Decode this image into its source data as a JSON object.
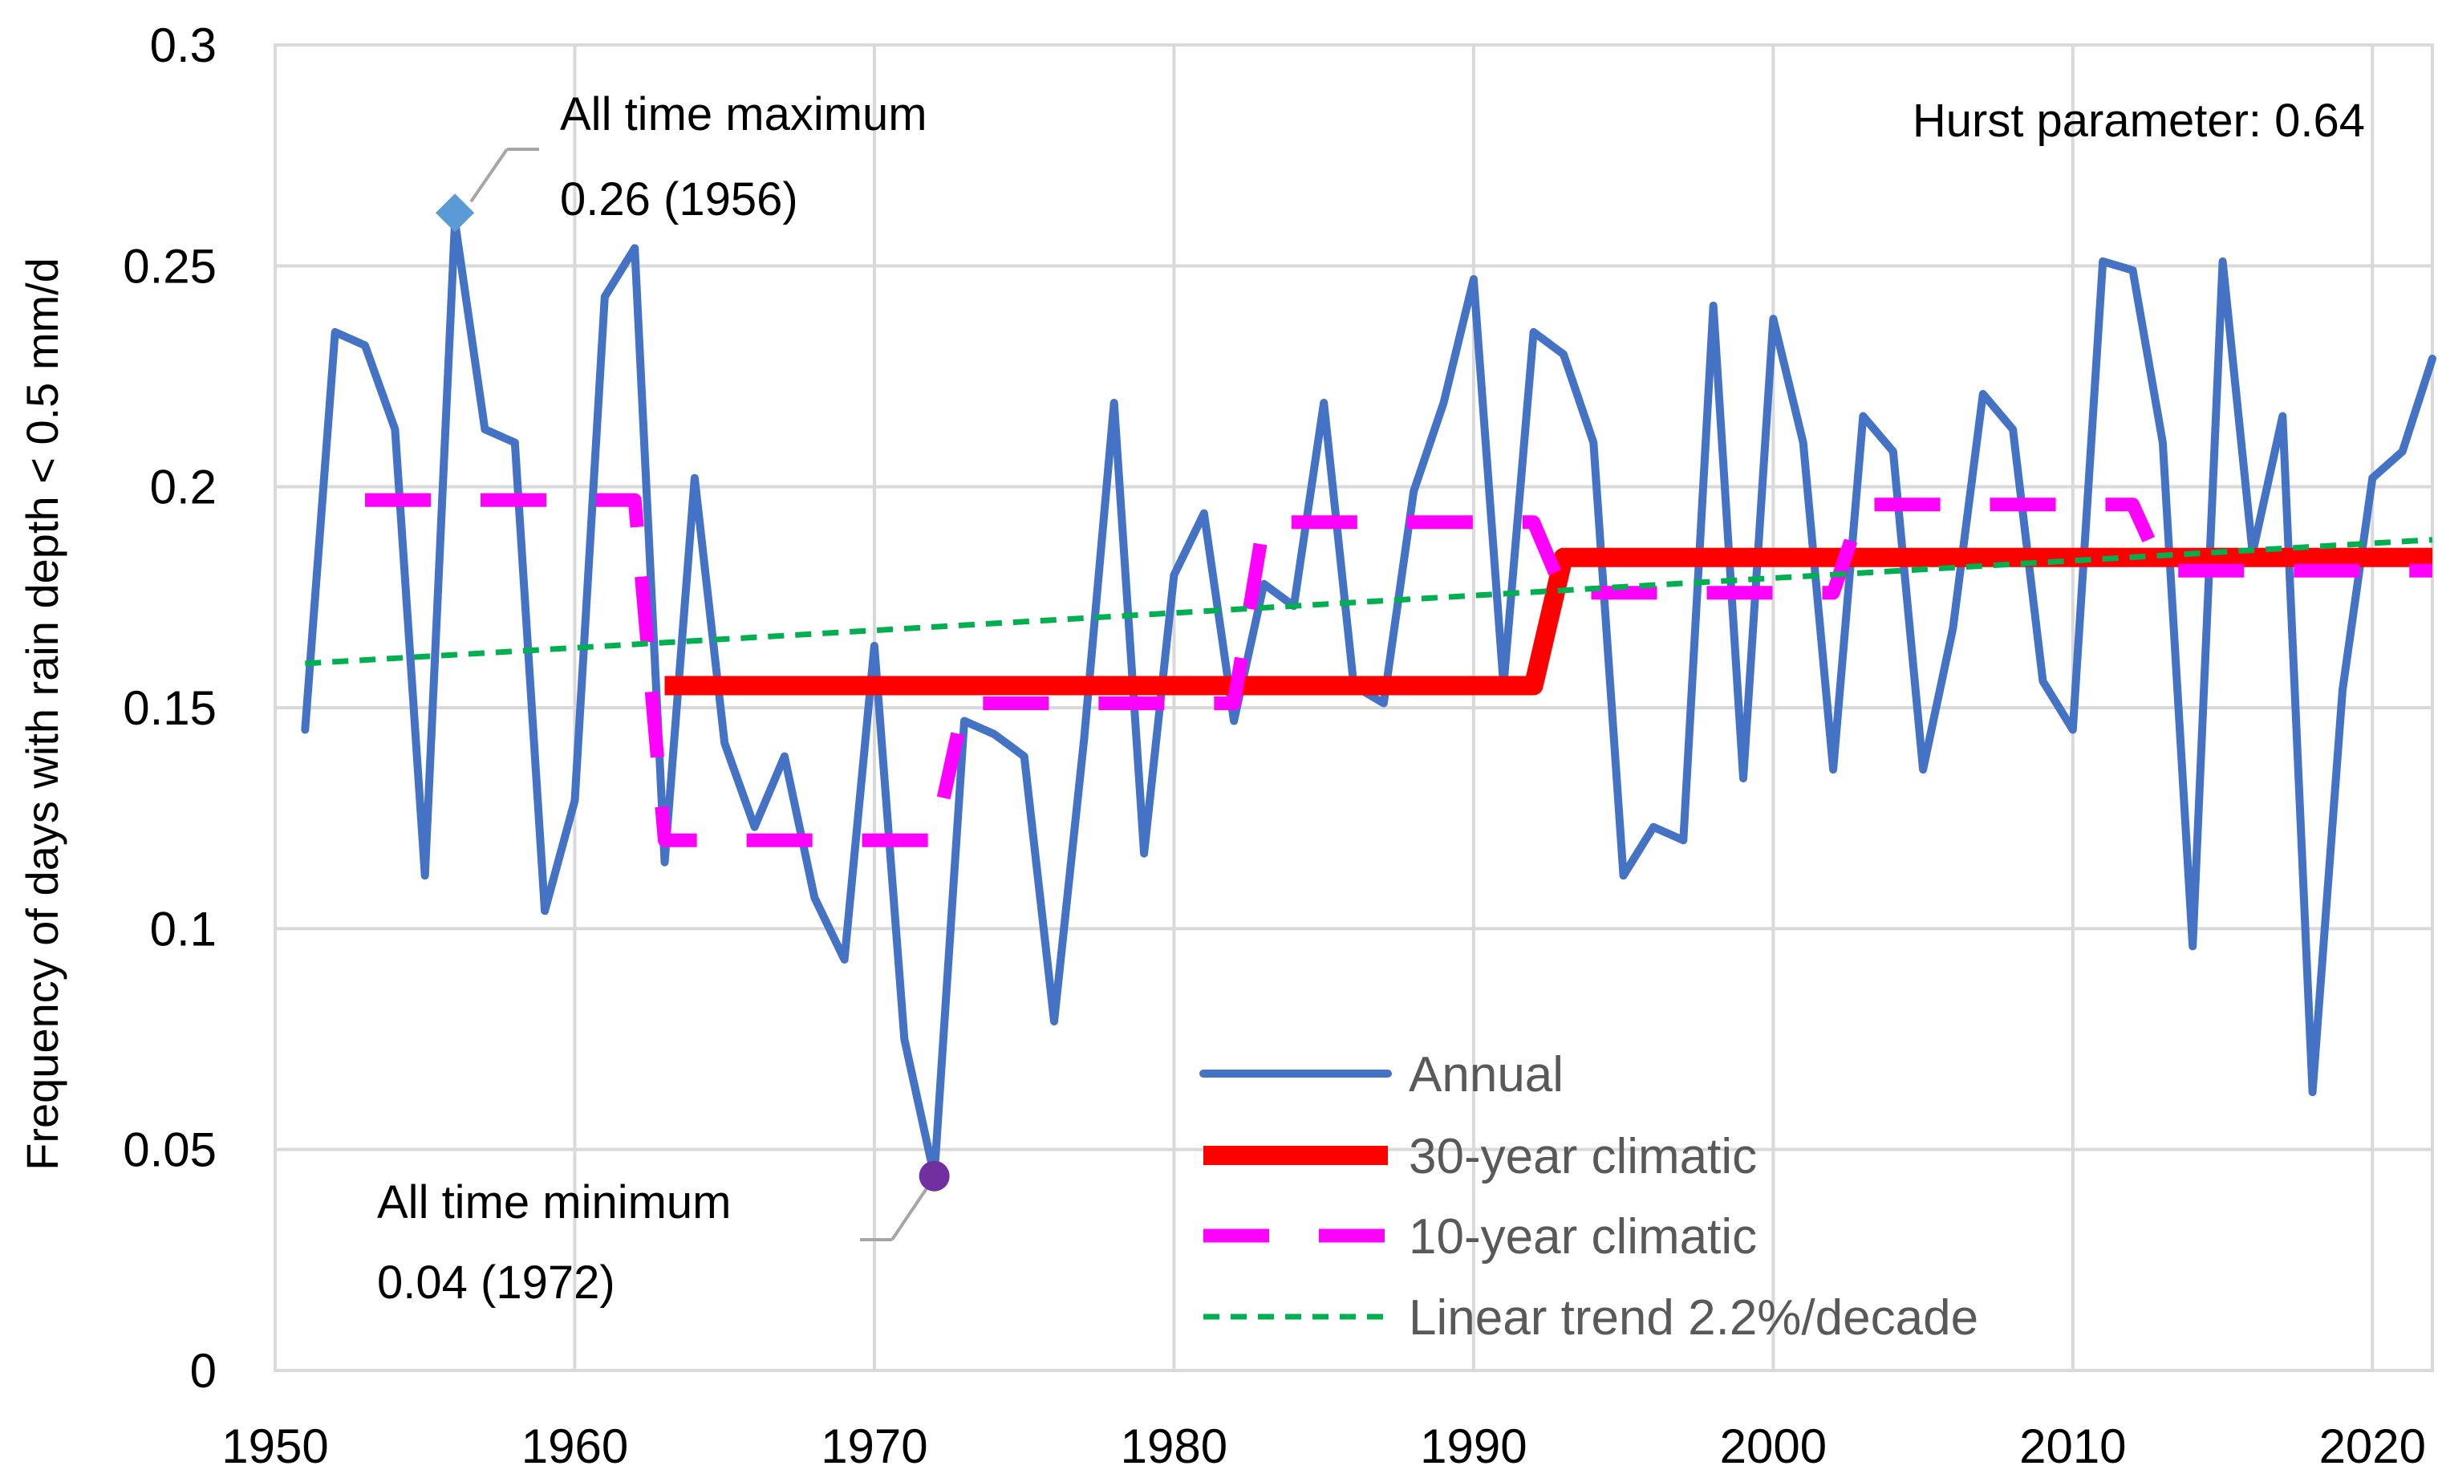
{
  "chart_data": {
    "type": "line",
    "title": "",
    "xlabel": "",
    "ylabel": "Frequency  of days with rain depth < 0.5 mm/d",
    "xlim": [
      1950,
      2022
    ],
    "ylim": [
      0,
      0.3
    ],
    "x_ticks": [
      1950,
      1960,
      1970,
      1980,
      1990,
      2000,
      2010,
      2020
    ],
    "x_tick_labels": [
      "1950",
      "1960",
      "1970",
      "1980",
      "1990",
      "2000",
      "2010",
      "2020"
    ],
    "y_ticks": [
      0,
      0.05,
      0.1,
      0.15,
      0.2,
      0.25,
      0.3
    ],
    "y_tick_labels": [
      "0",
      "0.05",
      "0.1",
      "0.15",
      "0.2",
      "0.25",
      "0.3"
    ],
    "grid": true,
    "legend_position": "bottom-right",
    "series": [
      {
        "name": "Annual",
        "style": "solid",
        "color": "#4472C4",
        "x": [
          1951,
          1952,
          1953,
          1954,
          1955,
          1956,
          1957,
          1958,
          1959,
          1960,
          1961,
          1962,
          1963,
          1964,
          1965,
          1966,
          1967,
          1968,
          1969,
          1970,
          1971,
          1972,
          1973,
          1974,
          1975,
          1976,
          1977,
          1978,
          1979,
          1980,
          1981,
          1982,
          1983,
          1984,
          1985,
          1986,
          1987,
          1988,
          1989,
          1990,
          1991,
          1992,
          1993,
          1994,
          1995,
          1996,
          1997,
          1998,
          1999,
          2000,
          2001,
          2002,
          2003,
          2004,
          2005,
          2006,
          2007,
          2008,
          2009,
          2010,
          2011,
          2012,
          2013,
          2014,
          2015,
          2016,
          2017,
          2018,
          2019,
          2020,
          2021,
          2022
        ],
        "values": [
          0.145,
          0.235,
          0.232,
          0.213,
          0.112,
          0.26,
          0.213,
          0.21,
          0.104,
          0.129,
          0.243,
          0.254,
          0.115,
          0.202,
          0.142,
          0.123,
          0.139,
          0.107,
          0.093,
          0.164,
          0.075,
          0.044,
          0.147,
          0.144,
          0.139,
          0.079,
          0.143,
          0.219,
          0.117,
          0.18,
          0.194,
          0.147,
          0.178,
          0.173,
          0.219,
          0.155,
          0.151,
          0.199,
          0.219,
          0.247,
          0.155,
          0.235,
          0.23,
          0.21,
          0.112,
          0.123,
          0.12,
          0.241,
          0.134,
          0.238,
          0.21,
          0.136,
          0.216,
          0.208,
          0.136,
          0.168,
          0.221,
          0.213,
          0.156,
          0.145,
          0.251,
          0.249,
          0.21,
          0.096,
          0.251,
          0.185,
          0.216,
          0.063,
          0.154,
          0.202,
          0.208,
          0.229
        ]
      },
      {
        "name": "30-year climatic",
        "style": "thick-solid",
        "color": "#FF0000",
        "x": [
          1963,
          1992,
          1993,
          2022
        ],
        "values": [
          0.155,
          0.155,
          0.184,
          0.184
        ]
      },
      {
        "name": "10-year climatic",
        "style": "dashed",
        "color": "#FF00FF",
        "x": [
          1953,
          1962,
          1963,
          1972,
          1973,
          1982,
          1983,
          1992,
          1993,
          2002,
          2003,
          2012,
          2013,
          2022
        ],
        "values": [
          0.197,
          0.197,
          0.12,
          0.12,
          0.151,
          0.151,
          0.192,
          0.192,
          0.176,
          0.176,
          0.196,
          0.196,
          0.181,
          0.181
        ]
      },
      {
        "name": "Linear trend 2.2%/decade",
        "style": "dotted",
        "color": "#00B050",
        "x": [
          1951,
          2022
        ],
        "values": [
          0.16,
          0.188
        ]
      }
    ],
    "annotations": [
      {
        "line1": "All time maximum",
        "line2": "0.26 (1956)",
        "x": 1956,
        "y": 0.262
      },
      {
        "line1": "All time minimum",
        "line2": "0.04 (1972)",
        "x": 1972,
        "y": 0.044
      },
      {
        "text": "Hurst parameter: 0.64"
      }
    ]
  },
  "colors": {
    "grid": "#D9D9D9",
    "max_marker": "#5B9BD5",
    "min_marker": "#7030A0",
    "leader": "#A6A6A6"
  }
}
